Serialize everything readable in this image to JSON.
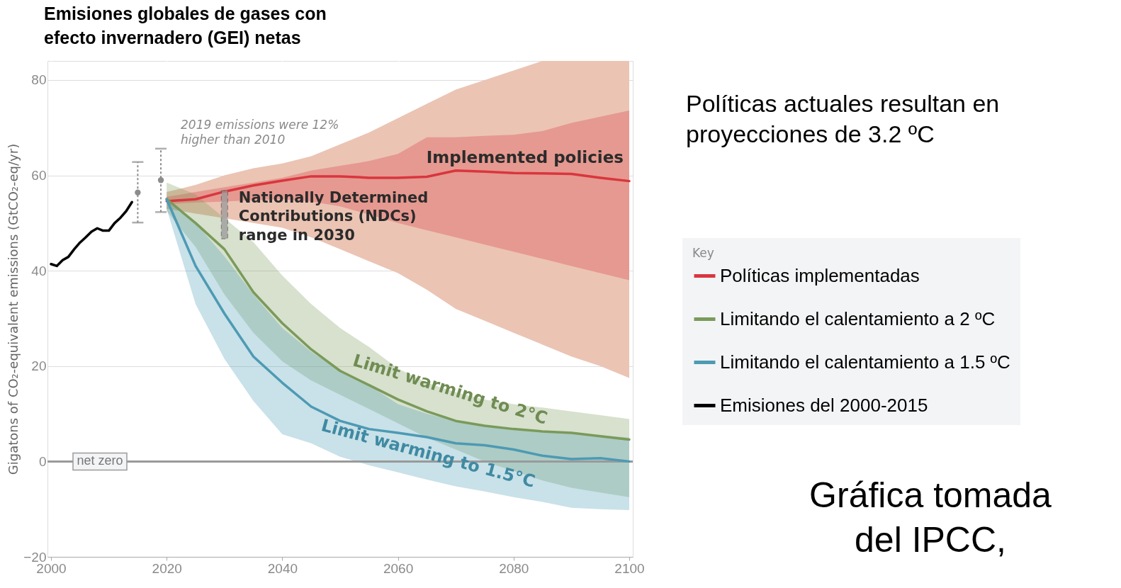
{
  "chart_data": {
    "type": "line",
    "title": "Emisiones globales de gases con efecto invernadero (GEI) netas",
    "ylabel": "Gigatons of CO₂-equivalent emissions (GtCO₂-eq/yr)",
    "legend_title": "Key",
    "x": [
      2020,
      2025,
      2030,
      2035,
      2040,
      2045,
      2050,
      2055,
      2060,
      2065,
      2070,
      2075,
      2080,
      2085,
      2090,
      2095,
      2100
    ],
    "xlim": [
      2000,
      2100
    ],
    "xticks": [
      2000,
      2020,
      2040,
      2060,
      2080,
      2100
    ],
    "ylim": [
      -20,
      84
    ],
    "yticks": [
      -20,
      0,
      20,
      40,
      60,
      80
    ],
    "grid": true,
    "legend": "right",
    "series": [
      {
        "color": "#ebc4b4",
        "values": [
          null,
          null,
          null,
          null,
          null,
          null,
          null,
          null,
          null,
          null,
          null,
          null,
          null,
          null,
          null,
          null,
          null
        ],
        "lower": [
          53,
          52,
          51,
          50,
          49,
          47,
          44.5,
          42,
          39.5,
          36,
          32,
          29.5,
          27,
          24.5,
          22,
          20,
          17.5
        ],
        "upper": [
          56.5,
          58,
          60,
          61.5,
          62.5,
          64,
          66.5,
          69,
          72,
          75,
          78,
          80,
          82,
          84,
          84,
          84,
          84
        ]
      },
      {
        "name": "Políticas implementadas",
        "color": "#d9363e",
        "values": [
          54.6,
          55,
          56.6,
          57.9,
          58.9,
          59.8,
          59.8,
          59.5,
          59.5,
          59.7,
          61,
          60.8,
          60.5,
          60.4,
          60.3,
          59.5,
          58.8
        ],
        "lower": [
          54,
          54.3,
          54.5,
          54.8,
          55,
          54.5,
          53.5,
          51.8,
          50,
          48.5,
          47,
          45.5,
          44,
          42.5,
          41,
          39.5,
          38
        ],
        "upper": [
          55.5,
          56.5,
          57.5,
          58.5,
          59.5,
          61,
          62,
          63,
          64.5,
          68,
          68,
          68.3,
          68.5,
          69.3,
          71,
          72.3,
          73.6
        ]
      },
      {
        "name": "Limitando el calentamiento a 2 ºC",
        "color": "#7a9a5a",
        "values": [
          55,
          50,
          44.5,
          35.5,
          29,
          23.5,
          19,
          16,
          13,
          10.5,
          8.5,
          7.5,
          6.8,
          6.3,
          6,
          5.3,
          4.6
        ],
        "lower": [
          52.5,
          45,
          35,
          27,
          21,
          17,
          14,
          11,
          8,
          5,
          2.5,
          0,
          -2,
          -4,
          -5.5,
          -6.5,
          -7.5
        ],
        "upper": [
          58.5,
          56,
          51,
          46,
          39,
          33,
          28,
          24,
          19.5,
          16.5,
          14.5,
          13,
          12,
          11.3,
          10.5,
          9.7,
          8.9
        ]
      },
      {
        "name": "Limitando el calentamiento a 1.5 ºC",
        "color": "#4d9ab4",
        "values": [
          55,
          41,
          31,
          22,
          16.5,
          11.5,
          8.5,
          6.8,
          6,
          5.1,
          3.8,
          3.4,
          2.5,
          1.2,
          0.5,
          0.7,
          0
        ],
        "lower": [
          53,
          33,
          21.5,
          12.7,
          5.7,
          3.8,
          1,
          -0.8,
          -2.3,
          -3.8,
          -5.2,
          -6.3,
          -7.5,
          -8.5,
          -9.7,
          -10,
          -10.2
        ],
        "upper": [
          55.5,
          50,
          43,
          35,
          28,
          23,
          19,
          16,
          12,
          10,
          8.5,
          7.5,
          6.8,
          6.3,
          6,
          5.5,
          5
        ]
      },
      {
        "name": "Emisiones del 2000-2015",
        "color": "#000000",
        "x": [
          2000,
          2001,
          2002,
          2003,
          2004,
          2005,
          2006,
          2007,
          2008,
          2009,
          2010,
          2011,
          2012,
          2013,
          2014
        ],
        "values": [
          41.4,
          41.0,
          42.2,
          42.9,
          44.5,
          45.9,
          47.0,
          48.2,
          48.9,
          48.4,
          48.4,
          50.0,
          51.1,
          52.5,
          54.4
        ]
      },
      {
        "type": "scatter",
        "color": "#8c8c8c",
        "marker": "circle",
        "x": [
          2015,
          2019
        ],
        "values": [
          56.4,
          59.0
        ],
        "errors": [
          [
            50.1,
            62.8
          ],
          [
            52.3,
            65.6
          ]
        ]
      },
      {
        "type": "bar",
        "color": "#9a9a9a",
        "x": [
          2030
        ],
        "base": [
          46.7
        ],
        "values": [
          10.1
        ]
      }
    ],
    "ref_lines": [
      {
        "axis": "y",
        "value": 0,
        "label": "net zero",
        "color": "#9a9a9a"
      }
    ],
    "annotations": [
      {
        "text": "2019 emissions were 12% higher than 2010",
        "x": 2019,
        "y": 65.6
      },
      {
        "text": "Nationally Determined Contributions (NDCs) range in 2030",
        "x": 2030,
        "y": 56.8
      },
      {
        "text": "Implemented policies",
        "x": 2100,
        "y": 58.8
      },
      {
        "text": "Limit warming to 2°C",
        "x": 2069,
        "y": 15
      },
      "Limit warming to 1.5°C",
      "Políticas actuales resultan en proyecciones de 3.2 ºC",
      "Gráfica tomada del IPCC,"
    ]
  }
}
